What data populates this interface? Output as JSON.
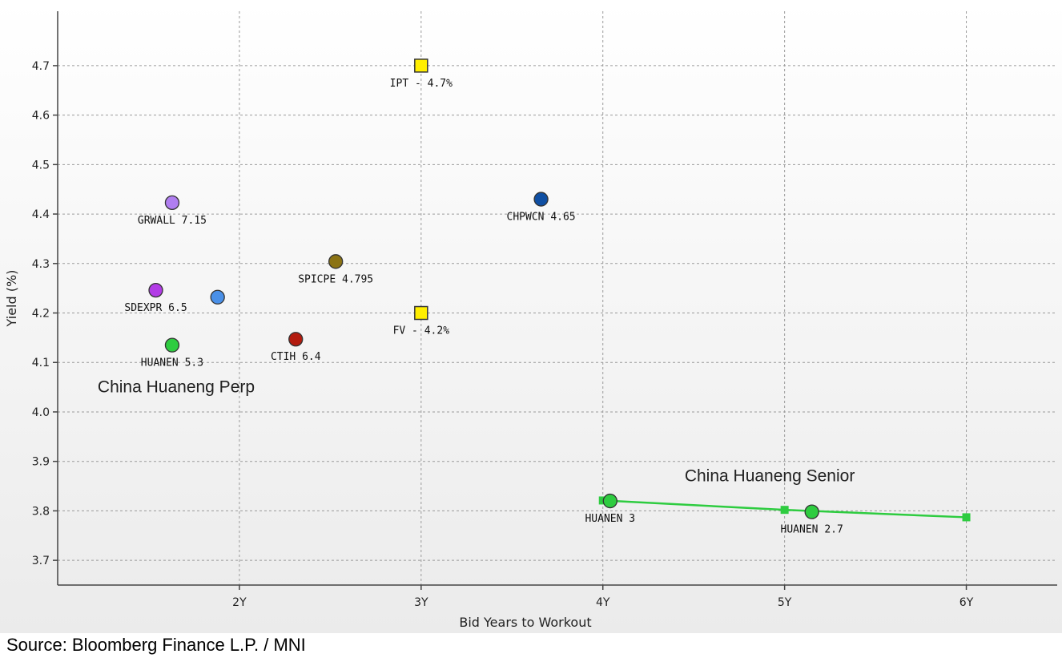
{
  "chart_data": {
    "type": "scatter",
    "xlabel": "Bid Years to Workout",
    "ylabel": "Yield (%)",
    "xlim": [
      1,
      6.5
    ],
    "ylim": [
      3.65,
      4.81
    ],
    "x_ticks": [
      {
        "value": 2,
        "label": "2Y"
      },
      {
        "value": 3,
        "label": "3Y"
      },
      {
        "value": 4,
        "label": "4Y"
      },
      {
        "value": 5,
        "label": "5Y"
      },
      {
        "value": 6,
        "label": "6Y"
      }
    ],
    "y_ticks": [
      {
        "value": 3.7,
        "label": "3.7"
      },
      {
        "value": 3.8,
        "label": "3.8"
      },
      {
        "value": 3.9,
        "label": "3.9"
      },
      {
        "value": 4.0,
        "label": "4.0"
      },
      {
        "value": 4.1,
        "label": "4.1"
      },
      {
        "value": 4.2,
        "label": "4.2"
      },
      {
        "value": 4.3,
        "label": "4.3"
      },
      {
        "value": 4.4,
        "label": "4.4"
      },
      {
        "value": 4.5,
        "label": "4.5"
      },
      {
        "value": 4.6,
        "label": "4.6"
      },
      {
        "value": 4.7,
        "label": "4.7"
      }
    ],
    "grid": true,
    "points": [
      {
        "name": "GRWALL 7.15",
        "x": 1.63,
        "y": 4.423,
        "color": "#b07ef0",
        "shape": "circle"
      },
      {
        "name": "SDEXPR 6.5",
        "x": 1.54,
        "y": 4.246,
        "color": "#b23ce6",
        "shape": "circle"
      },
      {
        "name": "",
        "x": 1.88,
        "y": 4.232,
        "color": "#4a90e8",
        "shape": "circle"
      },
      {
        "name": "HUANEN 5.3",
        "x": 1.63,
        "y": 4.135,
        "color": "#2ecc40",
        "shape": "circle"
      },
      {
        "name": "SPICPE 4.795",
        "x": 2.53,
        "y": 4.304,
        "color": "#8b7314",
        "shape": "circle"
      },
      {
        "name": "CTIH 6.4",
        "x": 2.31,
        "y": 4.147,
        "color": "#b31b0e",
        "shape": "circle"
      },
      {
        "name": "CHPWCN 4.65",
        "x": 3.66,
        "y": 4.43,
        "color": "#0f4fa3",
        "shape": "circle"
      },
      {
        "name": "IPT - 4.7%",
        "x": 3.0,
        "y": 4.7,
        "color": "#ffee00",
        "shape": "square"
      },
      {
        "name": "FV - 4.2%",
        "x": 3.0,
        "y": 4.2,
        "color": "#ffee00",
        "shape": "square"
      },
      {
        "name": "HUANEN 3",
        "x": 4.04,
        "y": 3.82,
        "color": "#2ecc40",
        "shape": "circle"
      },
      {
        "name": "HUANEN 2.7",
        "x": 5.15,
        "y": 3.798,
        "color": "#2ecc40",
        "shape": "circle"
      }
    ],
    "curve": {
      "name": "China Huaneng Senior curve",
      "color": "#2ecc40",
      "x": [
        4.0,
        5.0,
        6.0
      ],
      "y": [
        3.821,
        3.802,
        3.787
      ]
    },
    "annotations": [
      {
        "text": "China Huaneng Perp",
        "x": 1.22,
        "y": 4.04
      },
      {
        "text": "China Huaneng Senior",
        "x": 4.45,
        "y": 3.86
      }
    ]
  },
  "source": "Source: Bloomberg Finance L.P. / MNI"
}
